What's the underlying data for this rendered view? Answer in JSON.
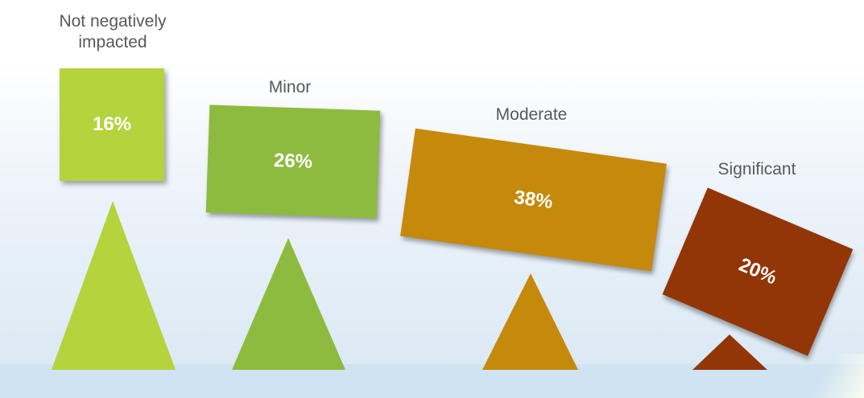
{
  "chart_data": {
    "type": "bar",
    "categories": [
      "Not negatively\nimpacted",
      "Minor",
      "Moderate",
      "Significant"
    ],
    "values": [
      16,
      26,
      38,
      20
    ],
    "value_labels": [
      "16%",
      "26%",
      "38%",
      "20%"
    ],
    "unit": "%"
  },
  "colors": {
    "not_negatively_impacted": "#b5d33d",
    "minor": "#8dbb3f",
    "moderate": "#c58a0c",
    "significant": "#923507",
    "floor": "#cfe3f2"
  },
  "labels": {
    "c0": "Not negatively\nimpacted",
    "c1": "Minor",
    "c2": "Moderate",
    "c3": "Significant",
    "v0": "16%",
    "v1": "26%",
    "v2": "38%",
    "v3": "20%"
  }
}
